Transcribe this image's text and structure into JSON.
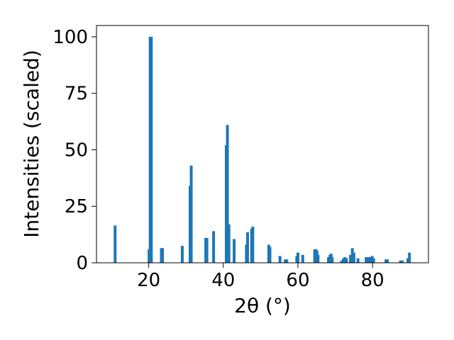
{
  "chart_data": {
    "type": "bar",
    "xlabel": "2θ (°)",
    "ylabel": "Intensities (scaled)",
    "xlim": [
      6,
      95
    ],
    "ylim": [
      0,
      105
    ],
    "x_ticks": [
      20,
      40,
      60,
      80
    ],
    "y_ticks": [
      0,
      25,
      50,
      75,
      100
    ],
    "grid": false,
    "bar_color": "#1f77b4",
    "series": [
      {
        "x": [
          11.0,
          20.1,
          20.4,
          20.7,
          23.4,
          23.7,
          29.0,
          31.1,
          31.4,
          35.3,
          35.6,
          37.4,
          40.8,
          41.1,
          41.5,
          42.9,
          46.2,
          46.5,
          47.6,
          47.9,
          52.2,
          52.5,
          55.2,
          56.6,
          57.0,
          59.7,
          60.0,
          61.3,
          64.5,
          64.8,
          65.1,
          65.4,
          68.2,
          68.6,
          68.9,
          69.2,
          71.7,
          72.2,
          72.6,
          73.0,
          74.1,
          74.6,
          75.0,
          76.1,
          78.3,
          78.7,
          79.1,
          79.5,
          79.9,
          80.3,
          83.6,
          84.0,
          87.5,
          88.0,
          89.5,
          89.9
        ],
        "values": [
          16.5,
          6.0,
          100.0,
          100.0,
          6.5,
          6.5,
          7.5,
          34.0,
          43.0,
          11.0,
          11.0,
          14.0,
          52.0,
          61.0,
          17.0,
          10.5,
          8.0,
          13.5,
          15.0,
          16.0,
          8.0,
          7.0,
          3.0,
          1.5,
          1.5,
          3.0,
          4.5,
          3.5,
          6.0,
          6.0,
          5.5,
          3.5,
          2.5,
          3.5,
          4.0,
          2.5,
          1.0,
          2.0,
          2.5,
          2.0,
          3.5,
          6.5,
          4.5,
          2.0,
          2.5,
          2.5,
          2.5,
          2.5,
          3.0,
          2.0,
          1.5,
          1.5,
          1.0,
          1.0,
          2.0,
          4.5
        ]
      }
    ]
  }
}
